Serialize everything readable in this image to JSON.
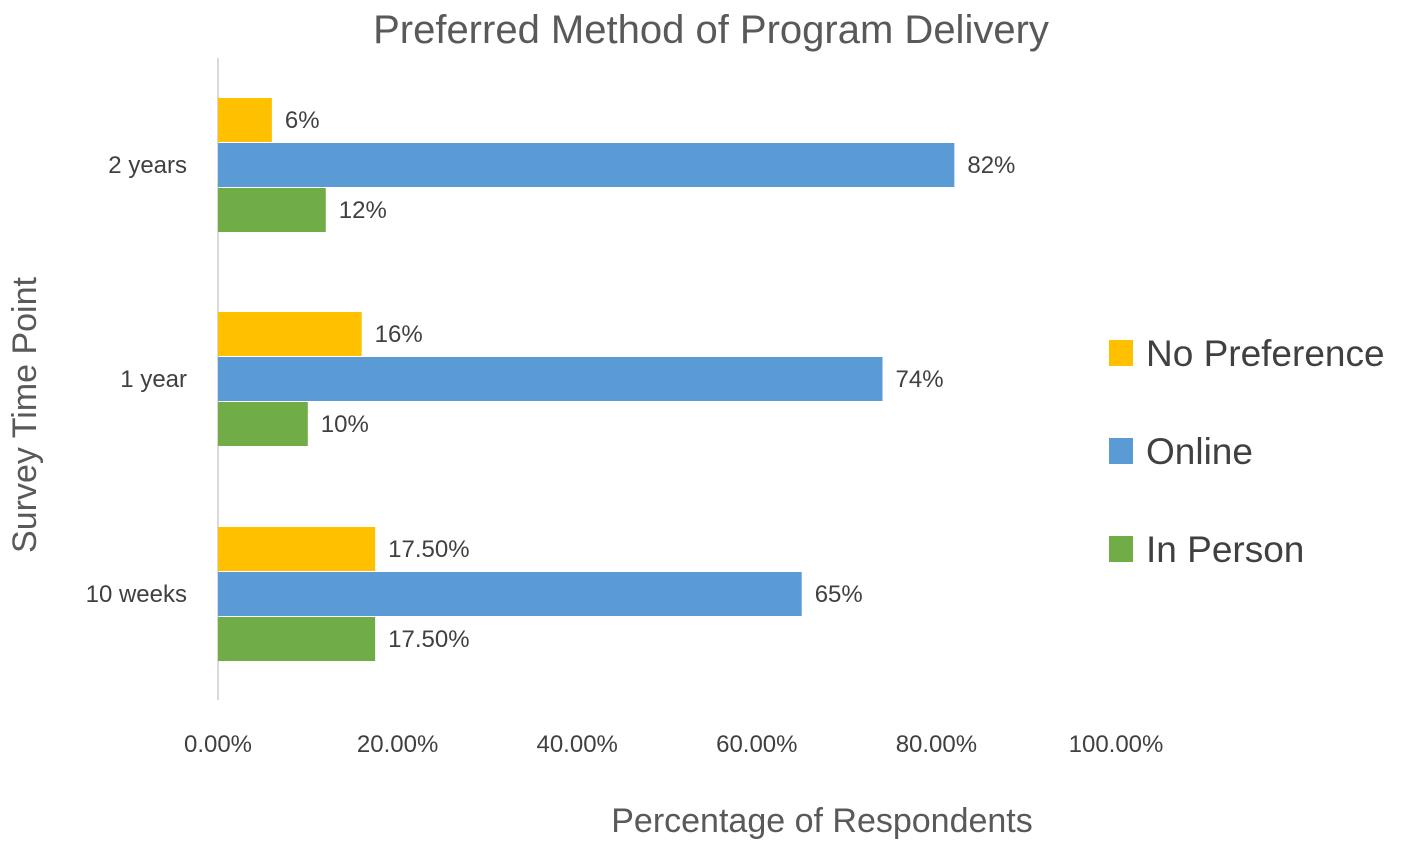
{
  "chart_data": {
    "type": "bar",
    "orientation": "horizontal",
    "title": "Preferred Method of Program Delivery",
    "xlabel": "Percentage of Respondents",
    "ylabel": "Survey Time Point",
    "xlim": [
      0,
      100
    ],
    "x_ticks": [
      0,
      20,
      40,
      60,
      80,
      100
    ],
    "x_tick_labels": [
      "0.00%",
      "20.00%",
      "40.00%",
      "60.00%",
      "80.00%",
      "100.00%"
    ],
    "categories": [
      "2 years",
      "1 year",
      "10 weeks"
    ],
    "series": [
      {
        "name": "No Preference",
        "color": "#FFC000",
        "values": [
          6,
          16,
          17.5
        ],
        "labels": [
          "6%",
          "16%",
          "17.50%"
        ]
      },
      {
        "name": "Online",
        "color": "#5B9BD5",
        "values": [
          82,
          74,
          65
        ],
        "labels": [
          "82%",
          "74%",
          "65%"
        ]
      },
      {
        "name": "In Person",
        "color": "#70AD47",
        "values": [
          12,
          10,
          17.5
        ],
        "labels": [
          "12%",
          "10%",
          "17.50%"
        ]
      }
    ],
    "legend_position": "right",
    "grid": false
  }
}
